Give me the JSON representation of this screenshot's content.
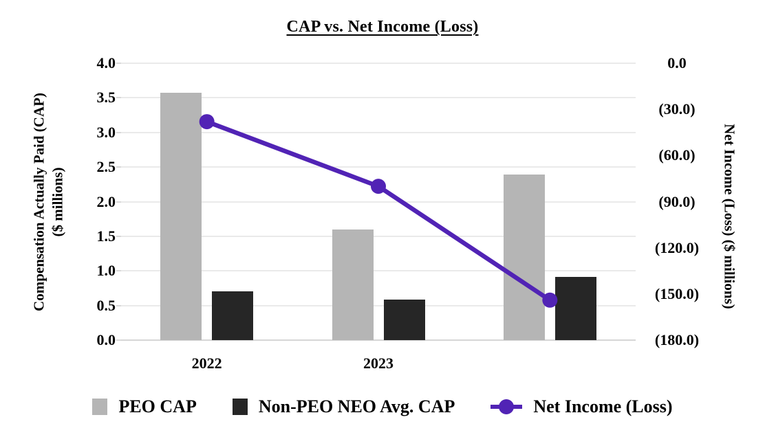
{
  "chart_data": {
    "type": "bar",
    "combo": "bars-left-axis + line-right-axis",
    "title": "CAP vs. Net Income (Loss)",
    "categories": [
      "2022",
      "2023",
      ""
    ],
    "series": [
      {
        "name": "PEO CAP",
        "type": "bar",
        "axis": "left",
        "color": "#b5b5b5",
        "values": [
          3.57,
          1.6,
          2.39
        ]
      },
      {
        "name": "Non-PEO NEO Avg. CAP",
        "type": "bar",
        "axis": "left",
        "color": "#262626",
        "values": [
          0.7,
          0.59,
          0.91
        ]
      },
      {
        "name": "Net Income (Loss)",
        "type": "line",
        "axis": "right",
        "color": "#5123b5",
        "values": [
          -38,
          -80,
          -154
        ]
      }
    ],
    "left_axis": {
      "title_line1": "Compensation Actually Paid (CAP)",
      "title_line2": "($ millions)",
      "ticks": [
        "4.0",
        "3.5",
        "3.0",
        "2.5",
        "2.0",
        "1.5",
        "1.0",
        "0.5",
        "0.0"
      ],
      "range": [
        0,
        4
      ]
    },
    "right_axis": {
      "label": "Net Income (Loss) ($ millions)",
      "ticks": [
        "0.0",
        "(30.0)",
        "(60.0)",
        "(90.0)",
        "(120.0)",
        "(150.0)",
        "(180.0)"
      ],
      "range": [
        0,
        -180
      ]
    },
    "grid": true,
    "legend_position": "bottom",
    "colors": {
      "background": "#ffffff",
      "gridline": "#eaeaea",
      "axis_line": "#d6d6d6",
      "text": "#000000"
    }
  }
}
